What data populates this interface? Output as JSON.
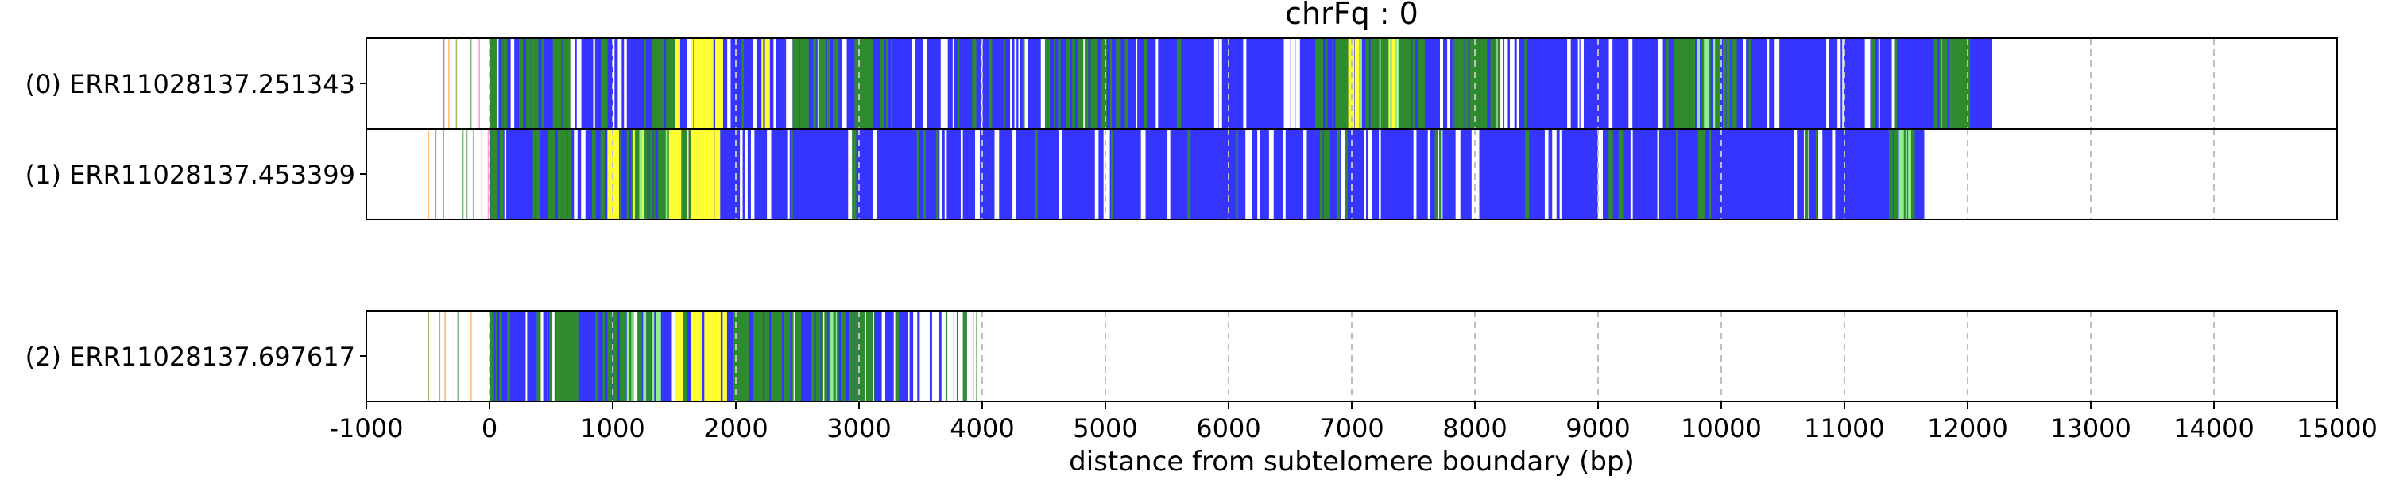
{
  "chart_data": {
    "type": "bar",
    "title": "chrFq : 0",
    "xlabel": "distance from subtelomere boundary (bp)",
    "ylabel": "",
    "xlim": [
      -1000,
      15000
    ],
    "xticks": [
      -1000,
      0,
      1000,
      2000,
      3000,
      4000,
      5000,
      6000,
      7000,
      8000,
      9000,
      10000,
      11000,
      12000,
      13000,
      14000,
      15000
    ],
    "xtick_labels": [
      "-1000",
      "0",
      "1000",
      "2000",
      "3000",
      "4000",
      "5000",
      "6000",
      "7000",
      "8000",
      "9000",
      "10000",
      "11000",
      "12000",
      "13000",
      "14000",
      "15000"
    ],
    "grid": "vertical dashed at each x tick",
    "colors": {
      "blue": "#3535ff",
      "green": "#2e8b2e",
      "lightgreen": "#90ee90",
      "yellow": "#ffff33",
      "sparse": [
        "#ff88cc",
        "#cc44aa",
        "#88aa44",
        "#9999ee",
        "#ffaa55",
        "#66aa66"
      ],
      "grid": "#bfbfbf"
    },
    "tracks": [
      {
        "label": "(0) ERR11028137.251343",
        "sparse_start": -500,
        "dense_start": 0,
        "end": 12200,
        "green_zones": [
          [
            0,
            120
          ],
          [
            250,
            450
          ],
          [
            500,
            650
          ],
          [
            1250,
            1500
          ],
          [
            2450,
            2800
          ],
          [
            2950,
            3100
          ],
          [
            4500,
            5100
          ],
          [
            6700,
            7600
          ],
          [
            7800,
            8200
          ],
          [
            9600,
            10100
          ],
          [
            11700,
            12000
          ]
        ],
        "yellow_zones": [
          [
            1500,
            1550
          ],
          [
            1620,
            1880
          ],
          [
            2200,
            2260
          ],
          [
            6950,
            7050
          ],
          [
            7250,
            7350
          ]
        ],
        "lightgreen_zones": [
          [
            7000,
            7400
          ],
          [
            9800,
            9950
          ]
        ],
        "white_regions": [
          [
            1900,
            1960
          ],
          [
            3650,
            3750
          ],
          [
            6400,
            6550
          ],
          [
            8150,
            8300
          ],
          [
            9050,
            9150
          ]
        ]
      },
      {
        "label": "(1) ERR11028137.453399",
        "sparse_start": -500,
        "dense_start": 0,
        "end": 11650,
        "green_zones": [
          [
            0,
            100
          ],
          [
            350,
            650
          ],
          [
            900,
            1850
          ],
          [
            6700,
            6800
          ],
          [
            11350,
            11550
          ]
        ],
        "yellow_zones": [
          [
            950,
            1050
          ],
          [
            1150,
            1250
          ],
          [
            1450,
            1550
          ],
          [
            1600,
            1860
          ]
        ],
        "lightgreen_zones": [
          [
            1200,
            1600
          ],
          [
            11400,
            11550
          ]
        ],
        "white_regions": []
      },
      {
        "label": "(2) ERR11028137.697617",
        "sparse_start": -500,
        "dense_start": 0,
        "end": 4000,
        "green_zones": [
          [
            0,
            150
          ],
          [
            450,
            700
          ],
          [
            850,
            1300
          ],
          [
            1950,
            2500
          ],
          [
            2600,
            3100
          ]
        ],
        "yellow_zones": [
          [
            1500,
            1560
          ],
          [
            1620,
            1900
          ]
        ],
        "lightgreen_zones": [
          [
            1100,
            1400
          ],
          [
            2700,
            2900
          ]
        ],
        "white_regions": [
          [
            3400,
            4000
          ]
        ]
      }
    ]
  }
}
